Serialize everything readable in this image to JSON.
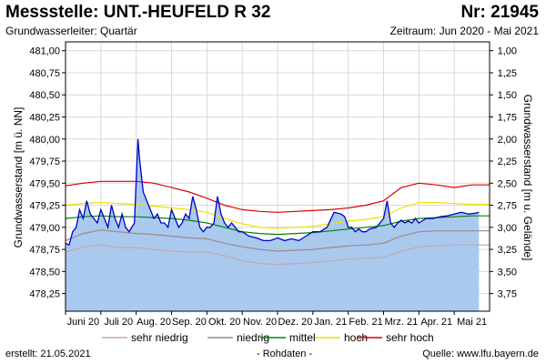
{
  "header": {
    "title": "Messstelle: UNT.-HEUFELD R 32",
    "number": "Nr: 21945",
    "aquifer": "Grundwasserleiter: Quartär",
    "period": "Zeitraum: Jun 2020 - Mai 2021"
  },
  "footer": {
    "created": "erstellt:  21.05.2021",
    "rawdata": "- Rohdaten -",
    "source": "Quelle: www.lfu.bayern.de"
  },
  "colors": {
    "measured": "#0000cc",
    "fill": "#a9c9ef",
    "very_low": "#c8a8a8",
    "low": "#a08888",
    "mean": "#008800",
    "high": "#f0e000",
    "very_high": "#dd0000"
  },
  "chart_data": {
    "type": "area",
    "ylabel_left": "Grundwasserstand [m ü. NN]",
    "ylabel_right": "Grundwasserstand [m u. Gelände]",
    "ylim": [
      478.05,
      481.1
    ],
    "yticks_left": [
      "481,00",
      "480,75",
      "480,50",
      "480,25",
      "480,00",
      "479,75",
      "479,50",
      "479,25",
      "479,00",
      "478,75",
      "478,50",
      "478,25"
    ],
    "yticks_right": [
      "1,00",
      "1,25",
      "1,50",
      "1,75",
      "2,00",
      "2,25",
      "2,50",
      "2,75",
      "3,00",
      "3,25",
      "3,50",
      "3,75"
    ],
    "right_axis_ground_level": 482.0,
    "xticks": [
      "Juni 20",
      "Juli 20",
      "Aug. 20",
      "Sep. 20",
      "Okt. 20",
      "Nov. 20",
      "Dez. 20",
      "Jan. 21",
      "Feb. 21",
      "Mrz. 21",
      "Apr. 21",
      "Mai 21"
    ],
    "xlim": [
      0,
      12
    ],
    "x_unit": "months since June 2020",
    "legend": [
      "sehr niedrig",
      "niedrig",
      "mittel",
      "hoch",
      "sehr hoch"
    ],
    "series": [
      {
        "name": "measured",
        "x": [
          0,
          0.1,
          0.2,
          0.3,
          0.4,
          0.5,
          0.6,
          0.7,
          0.8,
          0.9,
          1.0,
          1.1,
          1.2,
          1.3,
          1.4,
          1.5,
          1.6,
          1.7,
          1.8,
          1.95,
          2.05,
          2.1,
          2.2,
          2.3,
          2.4,
          2.5,
          2.6,
          2.7,
          2.8,
          2.9,
          3.0,
          3.1,
          3.2,
          3.3,
          3.4,
          3.5,
          3.6,
          3.7,
          3.8,
          3.9,
          4.0,
          4.1,
          4.2,
          4.3,
          4.4,
          4.5,
          4.6,
          4.7,
          4.8,
          4.9,
          5.0,
          5.2,
          5.4,
          5.6,
          5.8,
          6.0,
          6.2,
          6.4,
          6.6,
          6.8,
          7.0,
          7.2,
          7.4,
          7.6,
          7.8,
          7.9,
          8.0,
          8.1,
          8.2,
          8.3,
          8.4,
          8.5,
          8.6,
          8.8,
          9.0,
          9.1,
          9.2,
          9.3,
          9.4,
          9.5,
          9.6,
          9.7,
          9.8,
          9.9,
          10.0,
          10.2,
          10.4,
          10.6,
          10.8,
          11.0,
          11.2,
          11.4,
          11.6,
          11.7
        ],
        "values": [
          478.82,
          478.8,
          478.95,
          479.0,
          479.2,
          479.1,
          479.3,
          479.15,
          479.1,
          479.05,
          479.2,
          479.1,
          479.0,
          479.25,
          479.1,
          479.0,
          479.15,
          479.0,
          478.95,
          479.05,
          480.0,
          479.75,
          479.4,
          479.3,
          479.2,
          479.1,
          479.15,
          479.05,
          479.05,
          479.0,
          479.2,
          479.1,
          479.0,
          479.05,
          479.15,
          479.1,
          479.35,
          479.2,
          479.0,
          478.95,
          479.0,
          479.0,
          479.05,
          479.35,
          479.15,
          479.05,
          479.0,
          479.05,
          479.0,
          478.95,
          478.95,
          478.9,
          478.88,
          478.85,
          478.85,
          478.88,
          478.85,
          478.87,
          478.85,
          478.9,
          478.95,
          478.95,
          479.0,
          479.17,
          479.15,
          479.12,
          479.0,
          479.0,
          478.95,
          478.98,
          478.95,
          478.95,
          478.98,
          479.0,
          479.1,
          479.3,
          479.05,
          479.0,
          479.05,
          479.08,
          479.05,
          479.07,
          479.05,
          479.1,
          479.05,
          479.1,
          479.1,
          479.12,
          479.13,
          479.15,
          479.17,
          479.15,
          479.16,
          479.17
        ]
      },
      {
        "name": "sehr niedrig",
        "x": [
          0,
          0.5,
          1.0,
          1.5,
          2.0,
          2.5,
          3.0,
          3.5,
          4.0,
          4.5,
          5.0,
          5.5,
          6.0,
          6.5,
          7.0,
          7.5,
          8.0,
          8.5,
          9.0,
          9.5,
          10.0,
          10.5,
          11.0,
          11.5,
          12.0
        ],
        "values": [
          478.72,
          478.78,
          478.8,
          478.77,
          478.77,
          478.75,
          478.73,
          478.72,
          478.72,
          478.68,
          478.62,
          478.59,
          478.58,
          478.59,
          478.6,
          478.62,
          478.64,
          478.65,
          478.66,
          478.73,
          478.78,
          478.79,
          478.8,
          478.8,
          478.8
        ]
      },
      {
        "name": "niedrig",
        "x": [
          0,
          0.5,
          1.0,
          1.5,
          2.0,
          2.5,
          3.0,
          3.5,
          4.0,
          4.5,
          5.0,
          5.5,
          6.0,
          6.5,
          7.0,
          7.5,
          8.0,
          8.5,
          9.0,
          9.5,
          10.0,
          10.5,
          11.0,
          11.5,
          12.0
        ],
        "values": [
          478.85,
          478.93,
          478.97,
          478.95,
          478.93,
          478.92,
          478.9,
          478.88,
          478.87,
          478.82,
          478.78,
          478.75,
          478.73,
          478.74,
          478.75,
          478.77,
          478.79,
          478.8,
          478.82,
          478.9,
          478.95,
          478.96,
          478.96,
          478.96,
          478.96
        ]
      },
      {
        "name": "mittel",
        "x": [
          0,
          0.5,
          1.0,
          1.5,
          2.0,
          2.5,
          3.0,
          3.5,
          4.0,
          4.5,
          5.0,
          5.5,
          6.0,
          6.5,
          7.0,
          7.5,
          8.0,
          8.5,
          9.0,
          9.5,
          10.0,
          10.5,
          11.0,
          11.5,
          12.0
        ],
        "values": [
          479.1,
          479.12,
          479.13,
          479.12,
          479.12,
          479.11,
          479.1,
          479.08,
          479.05,
          479.0,
          478.95,
          478.93,
          478.92,
          478.93,
          478.94,
          478.96,
          478.98,
          479.0,
          479.02,
          479.07,
          479.1,
          479.11,
          479.12,
          479.13,
          479.13
        ]
      },
      {
        "name": "hoch",
        "x": [
          0,
          0.5,
          1.0,
          1.5,
          2.0,
          2.5,
          3.0,
          3.5,
          4.0,
          4.5,
          5.0,
          5.5,
          6.0,
          6.5,
          7.0,
          7.5,
          8.0,
          8.5,
          9.0,
          9.5,
          10.0,
          10.5,
          11.0,
          11.5,
          12.0
        ],
        "values": [
          479.25,
          479.27,
          479.28,
          479.27,
          479.26,
          479.24,
          479.22,
          479.2,
          479.17,
          479.1,
          479.04,
          479.0,
          478.99,
          479.0,
          479.01,
          479.04,
          479.07,
          479.09,
          479.12,
          479.22,
          479.28,
          479.28,
          479.27,
          479.26,
          479.26
        ]
      },
      {
        "name": "sehr hoch",
        "x": [
          0,
          0.5,
          1.0,
          1.5,
          2.0,
          2.5,
          3.0,
          3.5,
          4.0,
          4.5,
          5.0,
          5.5,
          6.0,
          6.5,
          7.0,
          7.5,
          8.0,
          8.5,
          9.0,
          9.5,
          10.0,
          10.5,
          11.0,
          11.5,
          12.0
        ],
        "values": [
          479.47,
          479.5,
          479.52,
          479.52,
          479.52,
          479.5,
          479.45,
          479.4,
          479.33,
          479.25,
          479.2,
          479.18,
          479.17,
          479.18,
          479.19,
          479.2,
          479.22,
          479.25,
          479.3,
          479.45,
          479.5,
          479.48,
          479.45,
          479.48,
          479.48
        ]
      }
    ]
  }
}
